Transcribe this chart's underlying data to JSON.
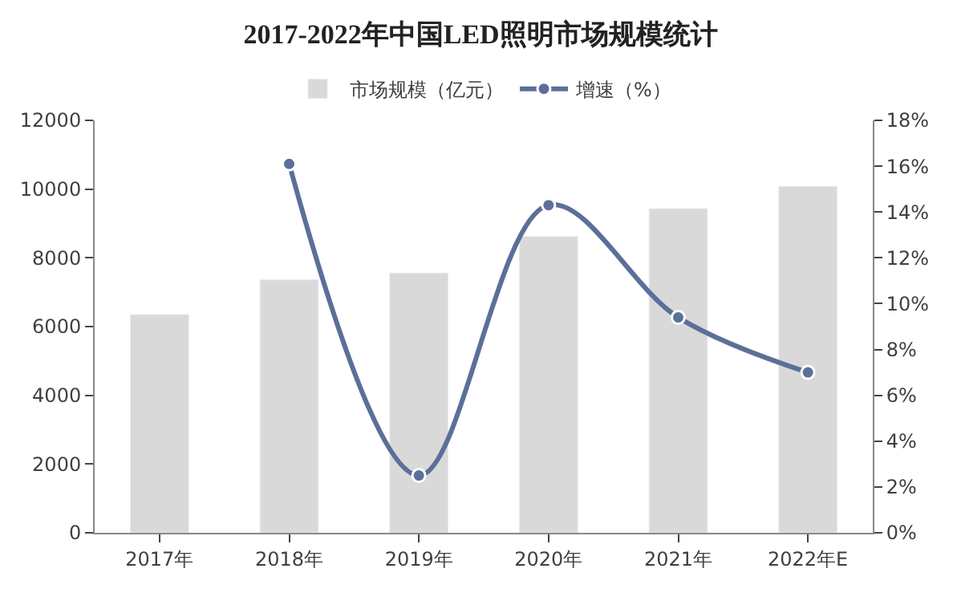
{
  "chart_data": {
    "type": "bar",
    "title": "2017-2022年中国LED照明市场规模统计",
    "categories": [
      "2017年",
      "2018年",
      "2019年",
      "2020年",
      "2021年",
      "2022年E"
    ],
    "series": [
      {
        "name": "市场规模（亿元）",
        "color": "#d9d9d9",
        "values": [
          6350,
          7360,
          7560,
          8620,
          9430,
          10080
        ]
      },
      {
        "name": "增速（%）",
        "type": "line",
        "axis": "y2",
        "color": "#5b6f99",
        "marker": "circle",
        "values": [
          null,
          16.1,
          2.5,
          14.3,
          9.4,
          7.0
        ]
      }
    ],
    "ylim": [
      0,
      12000
    ],
    "yticks": [
      0,
      2000,
      4000,
      6000,
      8000,
      10000,
      12000
    ],
    "y2lim": [
      0,
      18
    ],
    "y2ticks": [
      {
        "value": 0,
        "label": "0%"
      },
      {
        "value": 2,
        "label": "2%"
      },
      {
        "value": 4,
        "label": "4%"
      },
      {
        "value": 6,
        "label": "6%"
      },
      {
        "value": 8,
        "label": "8%"
      },
      {
        "value": 10,
        "label": "10%"
      },
      {
        "value": 12,
        "label": "12%"
      },
      {
        "value": 14,
        "label": "14%"
      },
      {
        "value": 16,
        "label": "16%"
      },
      {
        "value": 18,
        "label": "18%"
      }
    ],
    "legend": "top"
  }
}
